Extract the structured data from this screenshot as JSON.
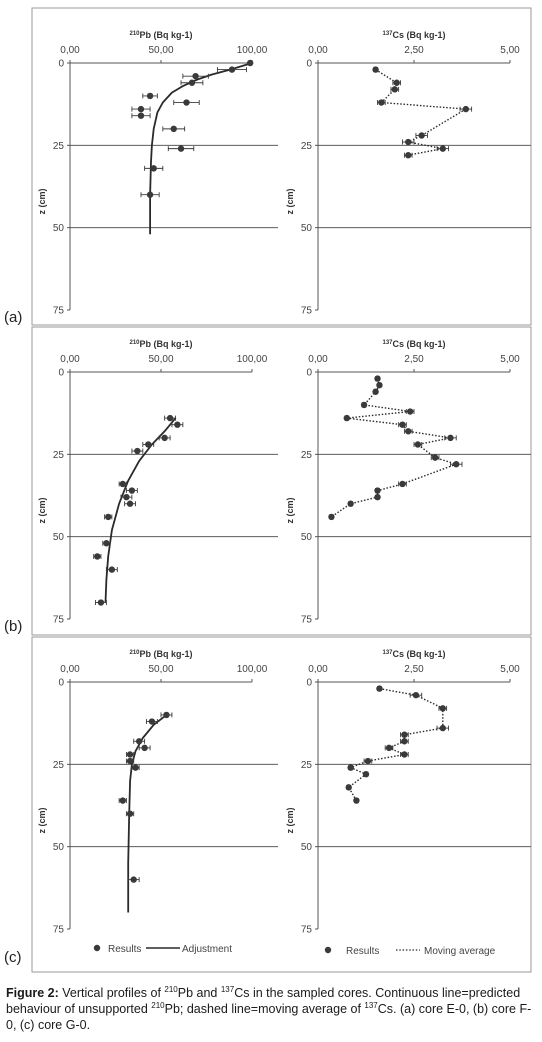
{
  "chart_data": [
    {
      "panel": "(a)",
      "type": "scatter",
      "title_iso": "210",
      "title_rest": "Pb (Bq kg-1)",
      "xlim": [
        0,
        100
      ],
      "xticks": [
        "0,00",
        "50,00",
        "100,00"
      ],
      "ylim": [
        0,
        75
      ],
      "yticks": [
        "0",
        "25",
        "50",
        "75"
      ],
      "ylabel": "z (cm)",
      "points": [
        {
          "x": 99,
          "y": 0,
          "err": 1
        },
        {
          "x": 89,
          "y": 2,
          "err": 8
        },
        {
          "x": 69,
          "y": 4,
          "err": 7
        },
        {
          "x": 67,
          "y": 6,
          "err": 6
        },
        {
          "x": 44,
          "y": 10,
          "err": 4
        },
        {
          "x": 64,
          "y": 12,
          "err": 7
        },
        {
          "x": 39,
          "y": 14,
          "err": 5
        },
        {
          "x": 39,
          "y": 16,
          "err": 5
        },
        {
          "x": 57,
          "y": 20,
          "err": 6
        },
        {
          "x": 61,
          "y": 26,
          "err": 7
        },
        {
          "x": 46,
          "y": 32,
          "err": 5
        },
        {
          "x": 44,
          "y": 40,
          "err": 5
        }
      ],
      "fit": {
        "label": "Adjustment",
        "x": [
          100,
          88,
          78,
          70,
          62,
          56,
          51,
          48,
          46,
          45,
          44.5,
          44,
          44
        ],
        "y": [
          0,
          2,
          3.5,
          5,
          7,
          9,
          12,
          15,
          20,
          25,
          30,
          40,
          52
        ]
      }
    },
    {
      "panel": "(a)",
      "type": "line",
      "title_iso": "137",
      "title_rest": "Cs (Bq kg-1)",
      "xlim": [
        0,
        5
      ],
      "xticks": [
        "0,00",
        "2,50",
        "5,00"
      ],
      "ylim": [
        0,
        75
      ],
      "yticks": [
        "0",
        "25",
        "50",
        "75"
      ],
      "ylabel": "z (cm)",
      "points": [
        {
          "x": 1.5,
          "y": 2,
          "err": 0.05
        },
        {
          "x": 2.05,
          "y": 6,
          "err": 0.1
        },
        {
          "x": 2.0,
          "y": 8,
          "err": 0.1
        },
        {
          "x": 1.65,
          "y": 12,
          "err": 0.1
        },
        {
          "x": 3.85,
          "y": 14,
          "err": 0.15
        },
        {
          "x": 2.7,
          "y": 22,
          "err": 0.15
        },
        {
          "x": 2.35,
          "y": 24,
          "err": 0.15
        },
        {
          "x": 3.25,
          "y": 26,
          "err": 0.15
        },
        {
          "x": 2.35,
          "y": 28,
          "err": 0.1
        }
      ]
    },
    {
      "panel": "(b)",
      "type": "scatter",
      "title_iso": "210",
      "title_rest": "Pb (Bq kg-1)",
      "xlim": [
        0,
        100
      ],
      "xticks": [
        "0,00",
        "50,00",
        "100,00"
      ],
      "ylim": [
        0,
        75
      ],
      "yticks": [
        "0",
        "25",
        "50",
        "75"
      ],
      "ylabel": "z (cm)",
      "points": [
        {
          "x": 55,
          "y": 14,
          "err": 3
        },
        {
          "x": 59,
          "y": 16,
          "err": 3
        },
        {
          "x": 52,
          "y": 20,
          "err": 3
        },
        {
          "x": 43,
          "y": 22,
          "err": 3
        },
        {
          "x": 37,
          "y": 24,
          "err": 3
        },
        {
          "x": 29,
          "y": 34,
          "err": 2
        },
        {
          "x": 34,
          "y": 36,
          "err": 3
        },
        {
          "x": 31,
          "y": 38,
          "err": 3
        },
        {
          "x": 33,
          "y": 40,
          "err": 3
        },
        {
          "x": 21,
          "y": 44,
          "err": 2
        },
        {
          "x": 20,
          "y": 52,
          "err": 2
        },
        {
          "x": 15,
          "y": 56,
          "err": 2
        },
        {
          "x": 23,
          "y": 60,
          "err": 3
        },
        {
          "x": 17,
          "y": 70,
          "err": 3
        }
      ],
      "fit": {
        "label": "Adjustment",
        "x": [
          58,
          52,
          45,
          38,
          32,
          27,
          23,
          21,
          20,
          19.5
        ],
        "y": [
          14,
          18,
          22,
          27,
          33,
          40,
          48,
          56,
          63,
          70
        ]
      }
    },
    {
      "panel": "(b)",
      "type": "line",
      "title_iso": "137",
      "title_rest": "Cs (Bq kg-1)",
      "xlim": [
        0,
        5
      ],
      "xticks": [
        "0,00",
        "2,50",
        "5,00"
      ],
      "ylim": [
        0,
        75
      ],
      "yticks": [
        "0",
        "25",
        "50",
        "75"
      ],
      "ylabel": "z (cm)",
      "points": [
        {
          "x": 1.55,
          "y": 2,
          "err": 0.05
        },
        {
          "x": 1.6,
          "y": 4,
          "err": 0.05
        },
        {
          "x": 1.5,
          "y": 6,
          "err": 0.05
        },
        {
          "x": 1.2,
          "y": 10,
          "err": 0.05
        },
        {
          "x": 2.4,
          "y": 12,
          "err": 0.1
        },
        {
          "x": 0.75,
          "y": 14,
          "err": 0.05
        },
        {
          "x": 2.2,
          "y": 16,
          "err": 0.1
        },
        {
          "x": 2.35,
          "y": 18,
          "err": 0.1
        },
        {
          "x": 3.45,
          "y": 20,
          "err": 0.15
        },
        {
          "x": 2.6,
          "y": 22,
          "err": 0.1
        },
        {
          "x": 3.05,
          "y": 26,
          "err": 0.1
        },
        {
          "x": 3.6,
          "y": 28,
          "err": 0.15
        },
        {
          "x": 2.2,
          "y": 34,
          "err": 0.1
        },
        {
          "x": 1.55,
          "y": 36,
          "err": 0.05
        },
        {
          "x": 1.55,
          "y": 38,
          "err": 0.05
        },
        {
          "x": 0.85,
          "y": 40,
          "err": 0.05
        },
        {
          "x": 0.35,
          "y": 44,
          "err": 0.05
        }
      ]
    },
    {
      "panel": "(c)",
      "type": "scatter",
      "title_iso": "210",
      "title_rest": "Pb (Bq kg-1)",
      "xlim": [
        0,
        100
      ],
      "xticks": [
        "0,00",
        "50,00",
        "100,00"
      ],
      "ylim": [
        0,
        75
      ],
      "yticks": [
        "0",
        "25",
        "50",
        "75"
      ],
      "ylabel": "z (cm)",
      "points": [
        {
          "x": 53,
          "y": 10,
          "err": 3
        },
        {
          "x": 45,
          "y": 12,
          "err": 3
        },
        {
          "x": 38,
          "y": 18,
          "err": 3
        },
        {
          "x": 41,
          "y": 20,
          "err": 3
        },
        {
          "x": 33,
          "y": 22,
          "err": 2
        },
        {
          "x": 33,
          "y": 24,
          "err": 2
        },
        {
          "x": 36,
          "y": 26,
          "err": 2
        },
        {
          "x": 29,
          "y": 36,
          "err": 2
        },
        {
          "x": 33,
          "y": 40,
          "err": 2
        },
        {
          "x": 35,
          "y": 60,
          "err": 3
        }
      ],
      "fit": {
        "label": "Adjustment",
        "x": [
          53,
          46,
          40,
          36,
          34,
          33,
          32.5,
          32,
          32
        ],
        "y": [
          10,
          13,
          17,
          21,
          25,
          30,
          40,
          55,
          70
        ]
      }
    },
    {
      "panel": "(c)",
      "type": "line",
      "title_iso": "137",
      "title_rest": "Cs (Bq kg-1)",
      "xlim": [
        0,
        5
      ],
      "xticks": [
        "0,00",
        "2,50",
        "5,00"
      ],
      "ylim": [
        0,
        75
      ],
      "yticks": [
        "0",
        "25",
        "50",
        "75"
      ],
      "ylabel": "z (cm)",
      "points": [
        {
          "x": 1.6,
          "y": 2,
          "err": 0.05
        },
        {
          "x": 2.55,
          "y": 4,
          "err": 0.15
        },
        {
          "x": 3.25,
          "y": 8,
          "err": 0.1
        },
        {
          "x": 3.25,
          "y": 14,
          "err": 0.15
        },
        {
          "x": 2.25,
          "y": 16,
          "err": 0.1
        },
        {
          "x": 2.25,
          "y": 18,
          "err": 0.1
        },
        {
          "x": 1.85,
          "y": 20,
          "err": 0.1
        },
        {
          "x": 2.25,
          "y": 22,
          "err": 0.1
        },
        {
          "x": 1.3,
          "y": 24,
          "err": 0.1
        },
        {
          "x": 0.85,
          "y": 26,
          "err": 0.05
        },
        {
          "x": 1.25,
          "y": 28,
          "err": 0.05
        },
        {
          "x": 0.8,
          "y": 32,
          "err": 0.05
        },
        {
          "x": 1.0,
          "y": 36,
          "err": 0.05
        }
      ]
    }
  ],
  "panel_labels": [
    "(a)",
    "(b)",
    "(c)"
  ],
  "legend": {
    "results": "Results",
    "adjustment": "Adjustment",
    "moving_average": "Moving average"
  },
  "caption": {
    "label": "Figure 2:",
    "part1": " Vertical profiles of ",
    "pb_iso": "210",
    "pb_sym": "Pb and ",
    "cs_iso": "137",
    "cs_sym": "Cs in the sampled cores. Continuous line=predicted behaviour of unsupported ",
    "pb_iso2": "210",
    "part2": "Pb; dashed line=moving average of ",
    "cs_iso2": "137",
    "part3": "Cs. (a) core E-0, (b) core F-0, (c) core G-0."
  },
  "colors": {
    "marker": "#3a3a3a",
    "line": "#2a2a2a",
    "frame": "#555555",
    "gridline": "#444444"
  }
}
